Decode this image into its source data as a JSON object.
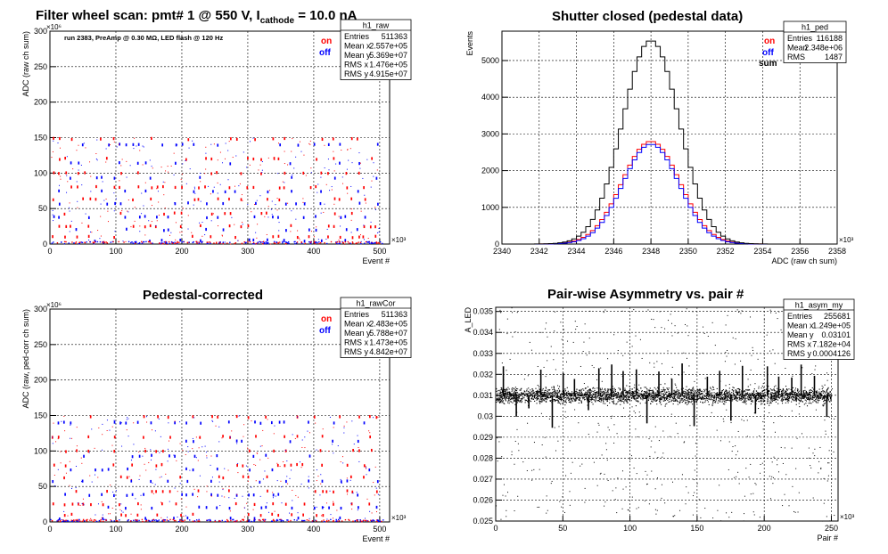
{
  "chart_data": [
    {
      "type": "scatter",
      "title": {
        "prefix": "Filter wheel scan: pmt#   1 @   550 V, I",
        "sub": "cathode",
        "suffix": "    = 10.0 nA"
      },
      "annotation": "run 2383, PreAmp @ 0.30 MΩ, LED flash @  120 Hz",
      "xlabel": "Event #",
      "ylabel": "ADC (raw ch sum)",
      "x_exponent": "×10³",
      "y_exponent": "×10⁶",
      "xlim": [
        0,
        515
      ],
      "ylim": [
        0,
        300
      ],
      "xticks": [
        "0",
        "100",
        "200",
        "300",
        "400",
        "500"
      ],
      "yticks": [
        "0",
        "50",
        "100",
        "150",
        "200",
        "250",
        "300"
      ],
      "grid": true,
      "series": [
        {
          "name": "on",
          "color": "#ff0000"
        },
        {
          "name": "off",
          "color": "#0000ff"
        }
      ],
      "levels_on": [
        148,
        120,
        100,
        80,
        63,
        43,
        25,
        10
      ],
      "levels_off": [
        140,
        114,
        93,
        74,
        57,
        38,
        20,
        5
      ],
      "stats": {
        "name": "h1_raw",
        "rows": [
          [
            "Entries",
            "511363"
          ],
          [
            "Mean x",
            "2.557e+05"
          ],
          [
            "Mean y",
            "5.369e+07"
          ],
          [
            "RMS x",
            "1.476e+05"
          ],
          [
            "RMS y",
            "4.915e+07"
          ]
        ]
      }
    },
    {
      "type": "line",
      "title": "Shutter closed (pedestal data)",
      "xlabel": "ADC (raw ch sum)",
      "ylabel": "Events",
      "x_exponent": "×10³",
      "xlim": [
        2340,
        2358
      ],
      "ylim": [
        0,
        5800
      ],
      "xticks": [
        "2340",
        "2342",
        "2344",
        "2346",
        "2348",
        "2350",
        "2352",
        "2354",
        "2356",
        "2358"
      ],
      "yticks": [
        "0",
        "1000",
        "2000",
        "3000",
        "4000",
        "5000"
      ],
      "grid": true,
      "series": [
        {
          "name": "on",
          "color": "#ff0000",
          "peak": 2800,
          "mean": 2348,
          "sigma": 1.55
        },
        {
          "name": "off",
          "color": "#0000ff",
          "peak": 2720,
          "mean": 2348,
          "sigma": 1.5
        },
        {
          "name": "sum",
          "color": "#000000",
          "peak": 5550,
          "mean": 2348,
          "sigma": 1.52
        }
      ],
      "stats": {
        "name": "h1_ped",
        "rows": [
          [
            "Entries",
            "116188"
          ],
          [
            "Mean",
            "2.348e+06"
          ],
          [
            "RMS",
            "1487"
          ]
        ]
      }
    },
    {
      "type": "scatter",
      "title": "Pedestal-corrected",
      "xlabel": "Event #",
      "ylabel": "ADC (raw, ped-corr ch sum)",
      "x_exponent": "×10³",
      "y_exponent": "×10⁶",
      "xlim": [
        0,
        515
      ],
      "ylim": [
        0,
        300
      ],
      "xticks": [
        "0",
        "100",
        "200",
        "300",
        "400",
        "500"
      ],
      "yticks": [
        "0",
        "50",
        "100",
        "150",
        "200",
        "250",
        "300"
      ],
      "grid": true,
      "series": [
        {
          "name": "on",
          "color": "#ff0000"
        },
        {
          "name": "off",
          "color": "#0000ff"
        }
      ],
      "levels_on": [
        148,
        120,
        100,
        80,
        63,
        43,
        25,
        10
      ],
      "levels_off": [
        140,
        114,
        93,
        74,
        57,
        38,
        20,
        5
      ],
      "stats": {
        "name": "h1_rawCor",
        "rows": [
          [
            "Entries",
            "511363"
          ],
          [
            "Mean x",
            "2.483e+05"
          ],
          [
            "Mean y",
            "5.788e+07"
          ],
          [
            "RMS x",
            "1.473e+05"
          ],
          [
            "RMS y",
            "4.842e+07"
          ]
        ]
      }
    },
    {
      "type": "scatter",
      "title": "Pair-wise Asymmetry vs. pair #",
      "xlabel": "Pair #",
      "ylabel": "A_LED",
      "x_exponent": "×10³",
      "xlim": [
        0,
        255
      ],
      "ylim": [
        0.025,
        0.0352
      ],
      "xticks": [
        "0",
        "50",
        "100",
        "150",
        "200",
        "250"
      ],
      "yticks": [
        "0.025",
        "0.026",
        "0.027",
        "0.028",
        "0.029",
        "0.03",
        "0.031",
        "0.032",
        "0.033",
        "0.034",
        "0.035"
      ],
      "grid": true,
      "band_center": 0.03101,
      "band_width": 0.00045,
      "series": [
        {
          "name": "asymmetry",
          "color": "#000000"
        }
      ],
      "stats": {
        "name": "h1_asym_my",
        "rows": [
          [
            "Entries",
            "255681"
          ],
          [
            "Mean x",
            "1.249e+05"
          ],
          [
            "Mean y",
            "0.03101"
          ],
          [
            "RMS x",
            "7.182e+04"
          ],
          [
            "RMS y",
            "0.0004126"
          ]
        ]
      }
    }
  ]
}
